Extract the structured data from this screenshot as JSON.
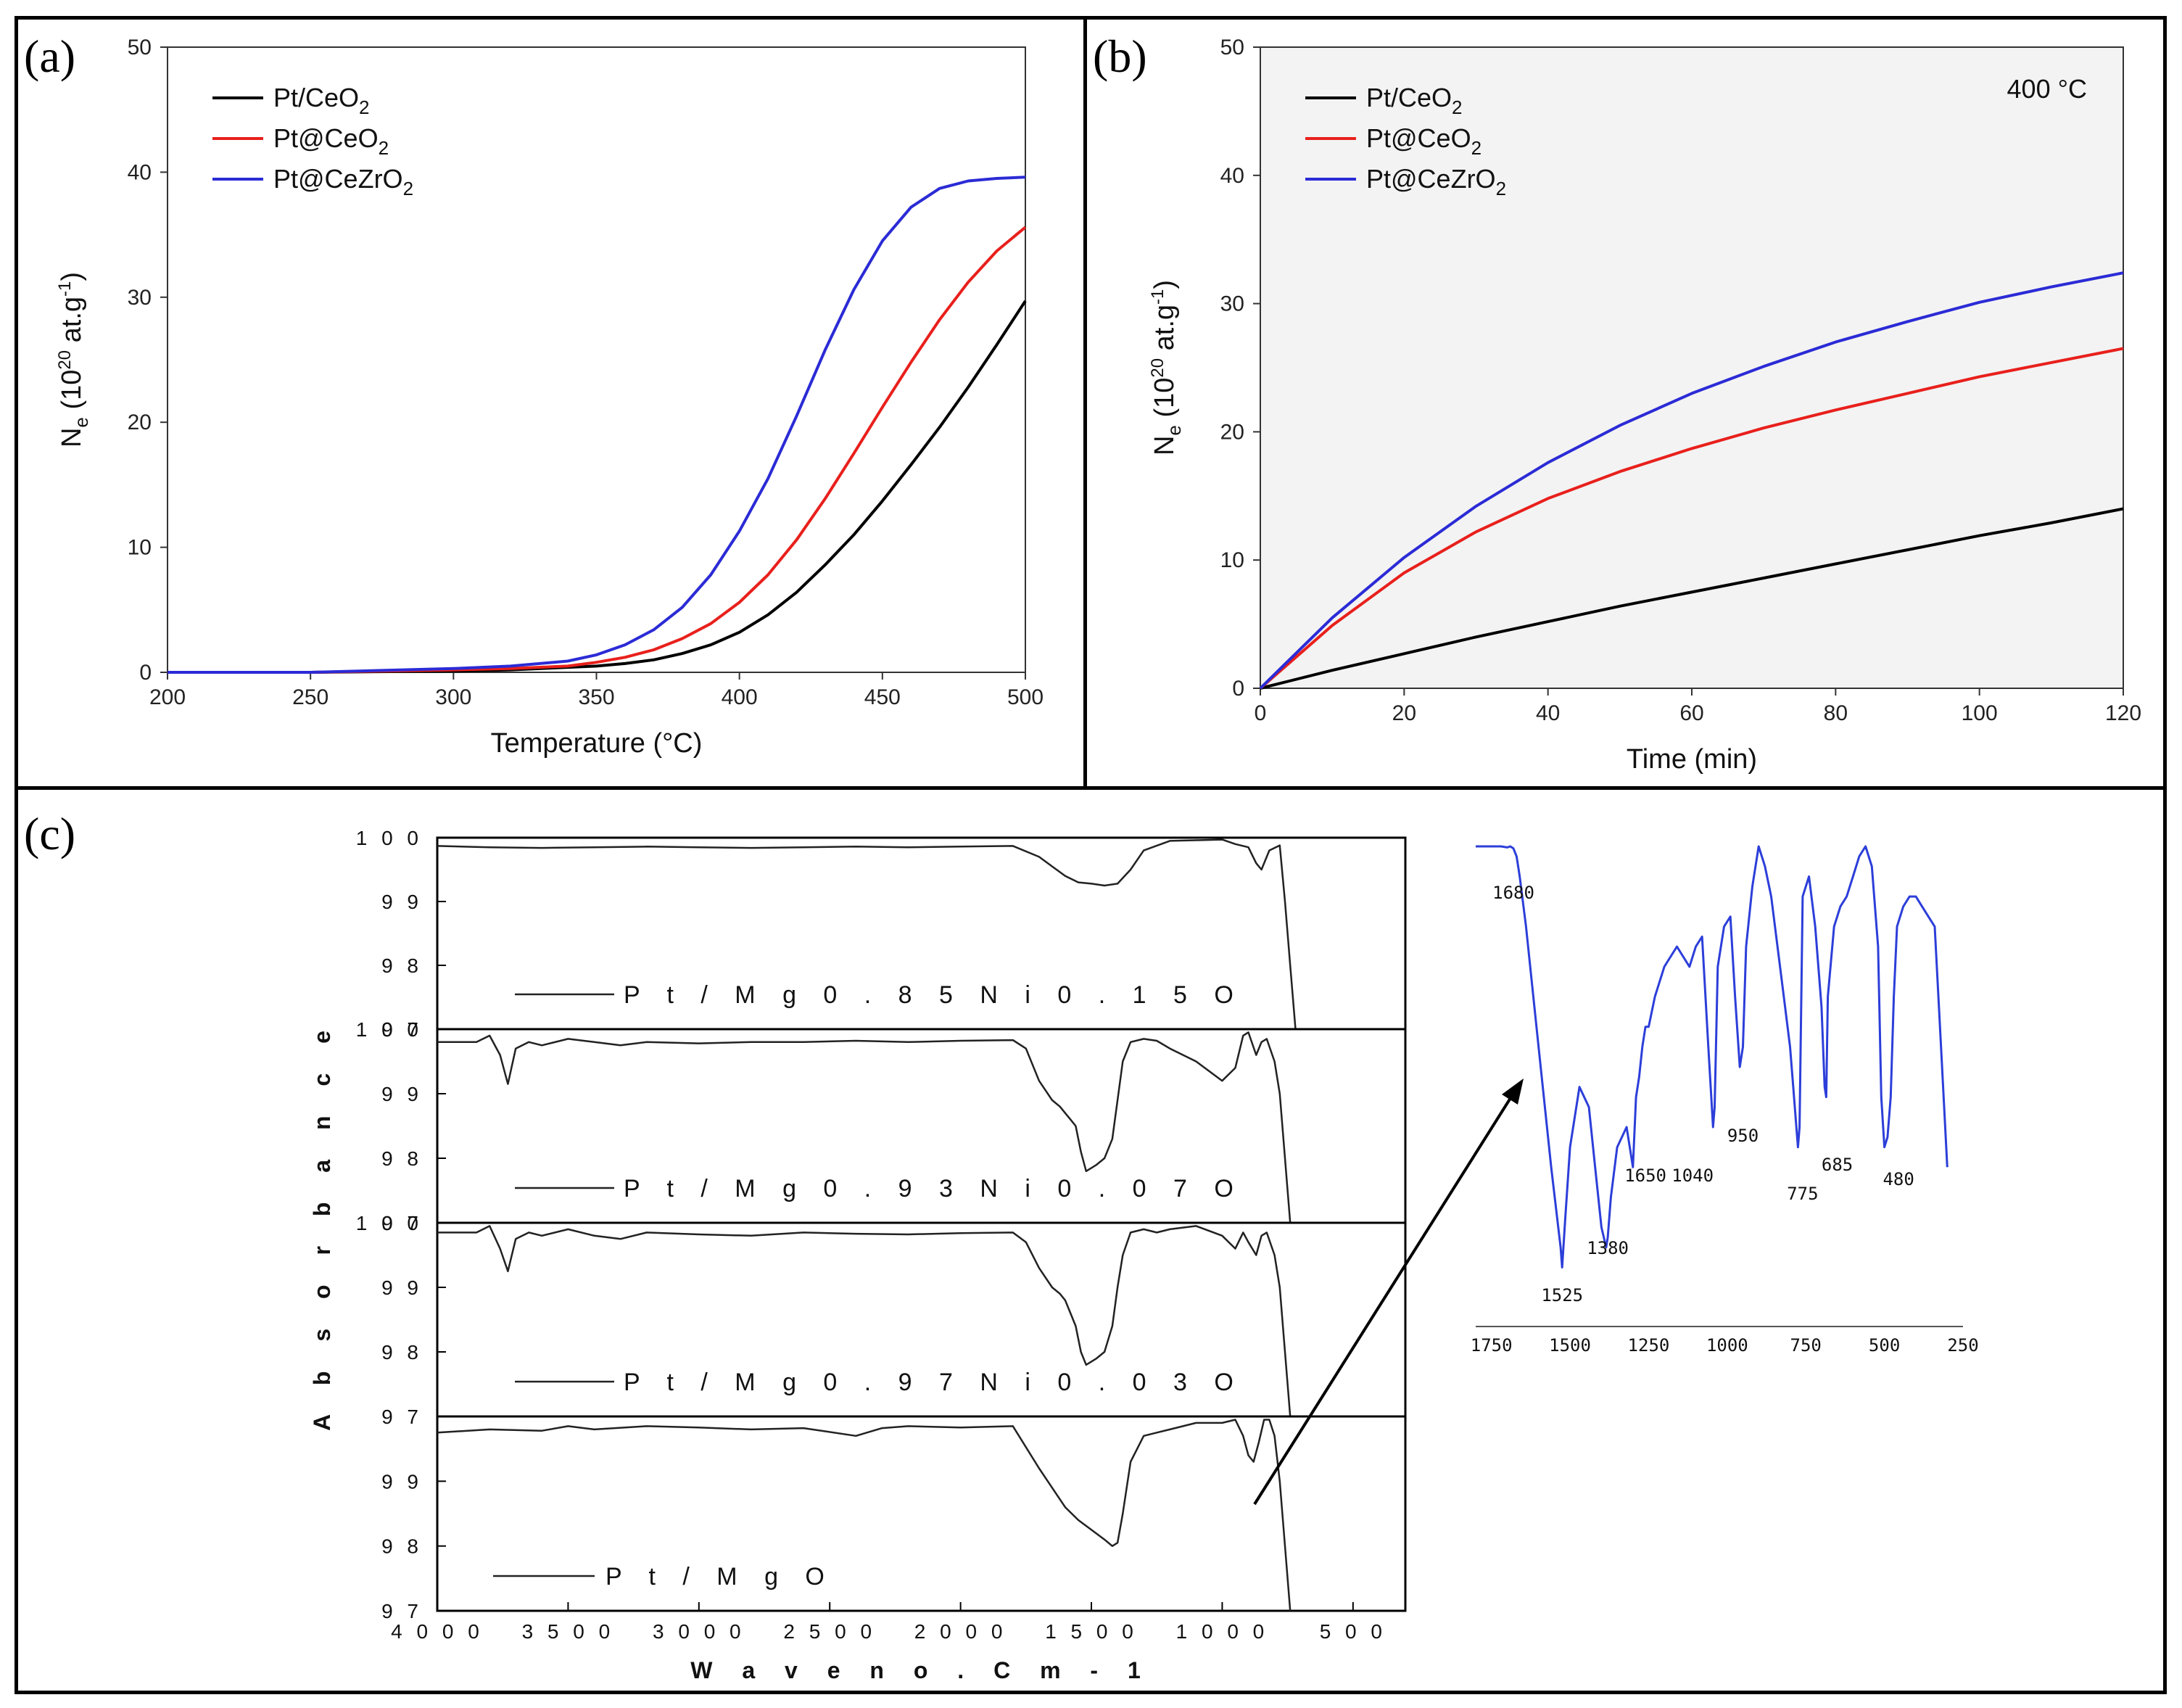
{
  "panels": {
    "a": {
      "label": "(a)"
    },
    "b": {
      "label": "(b)"
    },
    "c": {
      "label": "(c)"
    }
  },
  "chart_data": [
    {
      "id": "a",
      "type": "line",
      "title": "",
      "xlabel": "Temperature (°C)",
      "ylabel": "Ne (10^20 at.g^-1)",
      "ylabel_parts": {
        "main": "N",
        "sub": "e",
        "open": " (10",
        "sup": "20",
        "mid": " at.g",
        "sup2": "-1",
        "close": ")"
      },
      "xlim": [
        200,
        500
      ],
      "ylim": [
        0,
        50
      ],
      "xticks": [
        200,
        250,
        300,
        350,
        400,
        450,
        500
      ],
      "yticks": [
        0,
        10,
        20,
        30,
        40,
        50
      ],
      "legend_position": "top-left",
      "series": [
        {
          "name": "Pt/CeO2",
          "label_main": "Pt/CeO",
          "label_sub": "2",
          "color": "#000000",
          "x": [
            200,
            250,
            300,
            320,
            340,
            350,
            360,
            370,
            380,
            390,
            400,
            410,
            420,
            430,
            440,
            450,
            460,
            470,
            480,
            490,
            500
          ],
          "y": [
            0,
            0,
            0.1,
            0.2,
            0.4,
            0.5,
            0.7,
            1.0,
            1.5,
            2.2,
            3.2,
            4.6,
            6.4,
            8.6,
            11.0,
            13.7,
            16.6,
            19.6,
            22.8,
            26.2,
            29.7
          ]
        },
        {
          "name": "Pt@CeO2",
          "label_main": "Pt@CeO",
          "label_sub": "2",
          "color": "#e8201c",
          "x": [
            200,
            250,
            300,
            320,
            340,
            350,
            360,
            370,
            380,
            390,
            400,
            410,
            420,
            430,
            440,
            450,
            460,
            470,
            480,
            490,
            500
          ],
          "y": [
            0,
            0,
            0.2,
            0.3,
            0.5,
            0.8,
            1.2,
            1.8,
            2.7,
            3.9,
            5.6,
            7.8,
            10.6,
            13.9,
            17.5,
            21.2,
            24.8,
            28.2,
            31.2,
            33.7,
            35.6
          ]
        },
        {
          "name": "Pt@CeZrO2",
          "label_main": "Pt@CeZrO",
          "label_sub": "2",
          "color": "#2b2bd6",
          "x": [
            200,
            250,
            300,
            320,
            340,
            350,
            360,
            370,
            380,
            390,
            400,
            410,
            420,
            430,
            440,
            450,
            460,
            470,
            480,
            490,
            500
          ],
          "y": [
            0,
            0,
            0.3,
            0.5,
            0.9,
            1.4,
            2.2,
            3.4,
            5.2,
            7.8,
            11.3,
            15.5,
            20.5,
            25.8,
            30.6,
            34.5,
            37.2,
            38.7,
            39.3,
            39.5,
            39.6
          ]
        }
      ]
    },
    {
      "id": "b",
      "type": "line",
      "title": "",
      "annotation": "400 °C",
      "xlabel": "Time (min)",
      "ylabel": "Ne (10^20 at.g^-1)",
      "ylabel_parts": {
        "main": "N",
        "sub": "e",
        "open": " (10",
        "sup": "20",
        "mid": " at.g",
        "sup2": "-1",
        "close": ")"
      },
      "xlim": [
        0,
        120
      ],
      "ylim": [
        0,
        50
      ],
      "xticks": [
        0,
        20,
        40,
        60,
        80,
        100,
        120
      ],
      "yticks": [
        0,
        10,
        20,
        30,
        40,
        50
      ],
      "legend_position": "top-left",
      "series": [
        {
          "name": "Pt/CeO2",
          "label_main": "Pt/CeO",
          "label_sub": "2",
          "color": "#000000",
          "x": [
            0,
            10,
            20,
            30,
            40,
            50,
            60,
            70,
            80,
            90,
            100,
            110,
            120
          ],
          "y": [
            0,
            1.4,
            2.7,
            4.0,
            5.2,
            6.4,
            7.5,
            8.6,
            9.7,
            10.8,
            11.9,
            12.9,
            14.0
          ]
        },
        {
          "name": "Pt@CeO2",
          "label_main": "Pt@CeO",
          "label_sub": "2",
          "color": "#e8201c",
          "x": [
            0,
            10,
            20,
            30,
            40,
            50,
            60,
            70,
            80,
            90,
            100,
            110,
            120
          ],
          "y": [
            0,
            4.9,
            9.0,
            12.2,
            14.8,
            16.9,
            18.7,
            20.3,
            21.7,
            23.0,
            24.3,
            25.4,
            26.5
          ]
        },
        {
          "name": "Pt@CeZrO2",
          "label_main": "Pt@CeZrO",
          "label_sub": "2",
          "color": "#2b2bd6",
          "x": [
            0,
            10,
            20,
            30,
            40,
            50,
            60,
            70,
            80,
            90,
            100,
            110,
            120
          ],
          "y": [
            0,
            5.5,
            10.2,
            14.2,
            17.6,
            20.5,
            23.0,
            25.1,
            27.0,
            28.6,
            30.1,
            31.3,
            32.4
          ]
        }
      ]
    },
    {
      "id": "c",
      "type": "line",
      "title": "",
      "xlabel": "W a v e  n o . C m  - 1",
      "ylabel": "A b s o r b a n c e",
      "xlim": [
        4000,
        300
      ],
      "xticks": [
        4000,
        3500,
        3000,
        2500,
        2000,
        1500,
        1000,
        500
      ],
      "stack_yticks": [
        "1 0 0",
        "9 9",
        "9 8"
      ],
      "overlap_ytick": "9 7",
      "bottom_ylim": [
        97,
        100
      ],
      "bottom_yticks": [
        "9 9",
        "9 8",
        "9 7"
      ],
      "series": [
        {
          "name": "P t / M g 0 . 8 5 N i 0 . 1 5 O",
          "color": "#222222",
          "x": [
            4000,
            3800,
            3600,
            3400,
            3200,
            3000,
            2800,
            2600,
            2400,
            2200,
            2000,
            1800,
            1700,
            1650,
            1600,
            1550,
            1500,
            1450,
            1400,
            1350,
            1300,
            1200,
            1100,
            1000,
            950,
            900,
            870,
            850,
            820,
            780,
            760,
            740,
            720
          ],
          "y": [
            99.87,
            99.85,
            99.84,
            99.85,
            99.86,
            99.85,
            99.84,
            99.85,
            99.86,
            99.85,
            99.86,
            99.87,
            99.7,
            99.55,
            99.4,
            99.3,
            99.28,
            99.25,
            99.28,
            99.5,
            99.8,
            99.95,
            99.96,
            99.97,
            99.9,
            99.85,
            99.6,
            99.5,
            99.8,
            99.88,
            99.0,
            98.0,
            97.0
          ]
        },
        {
          "name": "P t / M g 0 . 9 3 N i 0 . 0 7 O",
          "color": "#222222",
          "x": [
            4000,
            3850,
            3800,
            3760,
            3730,
            3700,
            3650,
            3600,
            3500,
            3400,
            3300,
            3200,
            3000,
            2800,
            2600,
            2400,
            2200,
            2000,
            1800,
            1750,
            1700,
            1650,
            1620,
            1600,
            1580,
            1560,
            1540,
            1520,
            1500,
            1480,
            1450,
            1420,
            1400,
            1380,
            1350,
            1300,
            1250,
            1200,
            1100,
            1000,
            950,
            920,
            900,
            870,
            850,
            830,
            800,
            780,
            760,
            740
          ],
          "y": [
            99.8,
            99.8,
            99.9,
            99.6,
            99.15,
            99.7,
            99.8,
            99.75,
            99.85,
            99.8,
            99.75,
            99.8,
            99.78,
            99.8,
            99.8,
            99.82,
            99.8,
            99.82,
            99.83,
            99.7,
            99.2,
            98.9,
            98.8,
            98.7,
            98.6,
            98.5,
            98.1,
            97.8,
            97.85,
            97.9,
            98.0,
            98.3,
            98.9,
            99.5,
            99.8,
            99.85,
            99.82,
            99.7,
            99.5,
            99.2,
            99.4,
            99.9,
            99.95,
            99.6,
            99.8,
            99.85,
            99.5,
            99.0,
            98.0,
            97.0
          ]
        },
        {
          "name": "P t / M g 0 . 9 7 N i 0 . 0 3 O",
          "color": "#222222",
          "x": [
            4000,
            3850,
            3800,
            3760,
            3730,
            3700,
            3650,
            3600,
            3500,
            3400,
            3300,
            3200,
            3000,
            2800,
            2600,
            2400,
            2200,
            2000,
            1800,
            1750,
            1700,
            1650,
            1620,
            1600,
            1580,
            1560,
            1540,
            1520,
            1500,
            1480,
            1450,
            1420,
            1400,
            1380,
            1350,
            1300,
            1250,
            1200,
            1100,
            1000,
            950,
            920,
            900,
            870,
            850,
            830,
            800,
            780,
            760,
            740
          ],
          "y": [
            99.85,
            99.85,
            99.95,
            99.6,
            99.25,
            99.75,
            99.85,
            99.8,
            99.9,
            99.8,
            99.75,
            99.85,
            99.82,
            99.8,
            99.85,
            99.83,
            99.82,
            99.84,
            99.85,
            99.7,
            99.3,
            99.0,
            98.9,
            98.8,
            98.6,
            98.4,
            98.0,
            97.8,
            97.85,
            97.9,
            98.0,
            98.4,
            99.0,
            99.5,
            99.85,
            99.9,
            99.85,
            99.9,
            99.95,
            99.8,
            99.6,
            99.85,
            99.7,
            99.5,
            99.8,
            99.85,
            99.5,
            99.0,
            98.0,
            97.0
          ]
        },
        {
          "name": "P t / M g O",
          "color": "#222222",
          "x": [
            4000,
            3800,
            3600,
            3500,
            3400,
            3200,
            3000,
            2800,
            2600,
            2400,
            2300,
            2200,
            2000,
            1800,
            1700,
            1650,
            1600,
            1550,
            1500,
            1450,
            1420,
            1400,
            1380,
            1350,
            1300,
            1250,
            1200,
            1100,
            1000,
            950,
            920,
            900,
            880,
            860,
            840,
            820,
            800,
            780,
            760,
            740
          ],
          "y": [
            99.75,
            99.8,
            99.78,
            99.85,
            99.8,
            99.85,
            99.83,
            99.8,
            99.82,
            99.7,
            99.82,
            99.85,
            99.83,
            99.85,
            99.2,
            98.9,
            98.6,
            98.4,
            98.25,
            98.1,
            98.0,
            98.05,
            98.5,
            99.3,
            99.7,
            99.75,
            99.8,
            99.9,
            99.9,
            99.95,
            99.7,
            99.4,
            99.3,
            99.6,
            99.95,
            99.95,
            99.7,
            99.0,
            98.0,
            97.0
          ]
        }
      ],
      "inset": {
        "type": "line",
        "color": "#2c3ed9",
        "xlim": [
          1800,
          250
        ],
        "xticks": [
          1750,
          1500,
          1250,
          1000,
          750,
          500,
          250
        ],
        "peak_labels": [
          "1680",
          "1525",
          "1380",
          "1650",
          "1040",
          "950",
          "775",
          "685",
          "480"
        ],
        "x": [
          1800,
          1760,
          1720,
          1700,
          1690,
          1680,
          1670,
          1660,
          1640,
          1600,
          1560,
          1530,
          1525,
          1515,
          1500,
          1470,
          1440,
          1420,
          1400,
          1385,
          1380,
          1370,
          1350,
          1320,
          1300,
          1290,
          1280,
          1270,
          1260,
          1250,
          1230,
          1200,
          1180,
          1160,
          1140,
          1120,
          1100,
          1080,
          1060,
          1045,
          1040,
          1030,
          1010,
          990,
          975,
          960,
          950,
          940,
          920,
          900,
          880,
          860,
          840,
          820,
          800,
          790,
          780,
          775,
          770,
          760,
          740,
          720,
          700,
          690,
          685,
          680,
          660,
          640,
          620,
          600,
          580,
          560,
          540,
          520,
          510,
          500,
          490,
          480,
          470,
          460,
          440,
          420,
          400,
          380,
          360,
          340,
          320,
          300
        ],
        "y": [
          100,
          100,
          100,
          99.9,
          100,
          99.8,
          99,
          97,
          92,
          80,
          68,
          60,
          58,
          63,
          70,
          76,
          74,
          68,
          62,
          60,
          61,
          65,
          70,
          72,
          68,
          75,
          77,
          80,
          82,
          82,
          85,
          88,
          89,
          90,
          89,
          88,
          90,
          91,
          80,
          72,
          74,
          88,
          92,
          93,
          85,
          78,
          80,
          90,
          96,
          100,
          98,
          95,
          90,
          85,
          80,
          76,
          72,
          70,
          72,
          95,
          97,
          92,
          84,
          76,
          75,
          85,
          92,
          94,
          95,
          97,
          99,
          100,
          98,
          90,
          75,
          70,
          71,
          75,
          85,
          92,
          94,
          95,
          95,
          94,
          93,
          92,
          80,
          68
        ]
      }
    }
  ]
}
